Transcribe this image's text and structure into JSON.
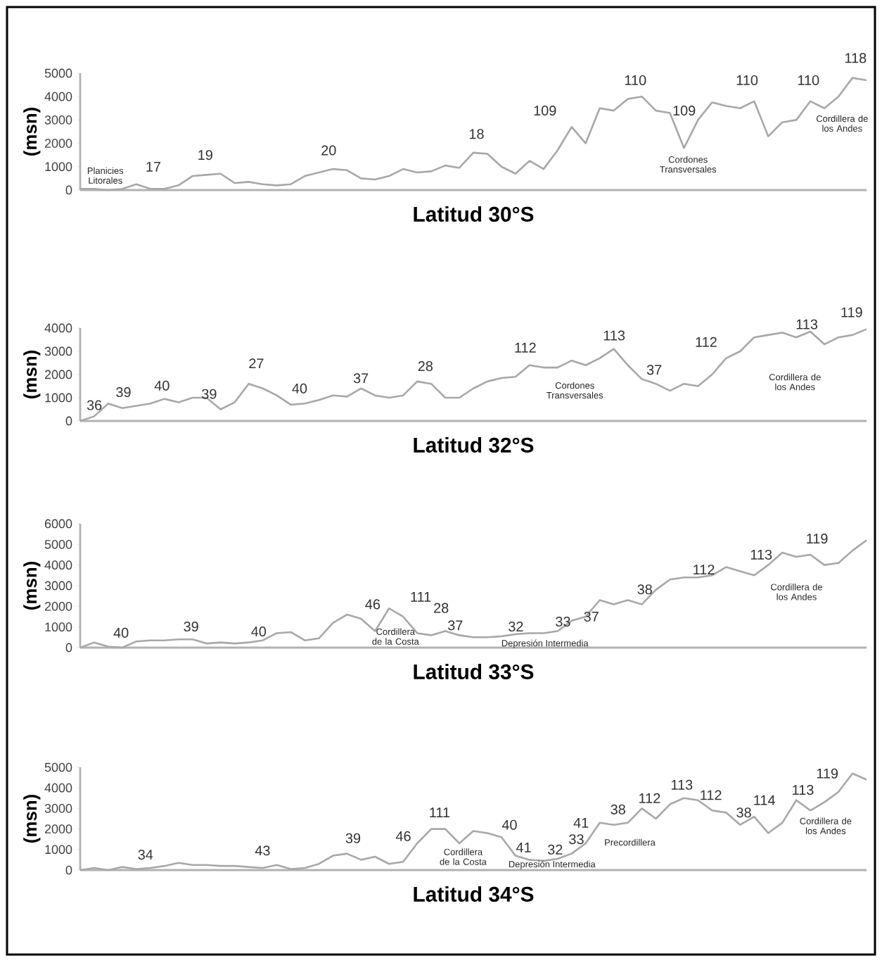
{
  "chart_data": [
    {
      "type": "line",
      "color": "#a8a8a8",
      "tick_labels": "y",
      "xlabel": "Latitud 30°S",
      "ylabel": "(msn)",
      "ylim": [
        0,
        5000
      ],
      "yticks": [
        0,
        1000,
        2000,
        3000,
        4000,
        5000
      ],
      "categories": [
        null,
        null,
        null,
        null,
        null,
        null,
        null,
        null,
        null,
        null,
        null,
        null,
        null,
        null,
        null,
        null,
        null,
        null,
        null,
        null,
        null,
        null,
        null,
        null,
        null,
        null,
        null,
        null,
        null,
        null,
        null,
        null,
        null,
        null,
        null,
        null,
        null,
        null,
        null,
        null,
        null,
        null,
        null,
        null,
        null,
        null,
        null,
        null,
        null,
        null,
        null,
        null,
        null,
        null,
        null,
        null,
        null
      ],
      "values": [
        50,
        50,
        0,
        50,
        250,
        50,
        50,
        200,
        600,
        650,
        700,
        300,
        350,
        250,
        200,
        250,
        600,
        750,
        900,
        850,
        500,
        450,
        600,
        900,
        750,
        800,
        1050,
        950,
        1600,
        1550,
        1000,
        700,
        1250,
        900,
        1700,
        2700,
        2000,
        3500,
        3400,
        3900,
        4000,
        3400,
        3300,
        1800,
        3000,
        3750,
        3600,
        3500,
        3800,
        2300,
        2900,
        3000,
        3800,
        3500,
        4000,
        4800,
        4700
      ],
      "annotations": [
        "Planicies Litorales",
        "17",
        "19",
        "20",
        "18",
        "109",
        "110",
        "109",
        "Cordones Transversales",
        "110",
        "110",
        "118",
        "Cordillera de los Andes"
      ]
    },
    {
      "type": "line",
      "color": "#a8a8a8",
      "tick_labels": "y",
      "xlabel": "Latitud 32°S",
      "ylabel": "(msn)",
      "ylim": [
        0,
        4000
      ],
      "yticks": [
        0,
        1000,
        2000,
        3000,
        4000
      ],
      "categories": [
        null,
        null,
        null,
        null,
        null,
        null,
        null,
        null,
        null,
        null,
        null,
        null,
        null,
        null,
        null,
        null,
        null,
        null,
        null,
        null,
        null,
        null,
        null,
        null,
        null,
        null,
        null,
        null,
        null,
        null,
        null,
        null,
        null,
        null,
        null,
        null,
        null,
        null,
        null,
        null,
        null,
        null,
        null,
        null,
        null,
        null,
        null,
        null,
        null,
        null,
        null,
        null,
        null,
        null,
        null,
        null,
        null
      ],
      "values": [
        0,
        200,
        750,
        550,
        650,
        750,
        950,
        800,
        1000,
        1000,
        500,
        800,
        1600,
        1400,
        1100,
        700,
        750,
        900,
        1100,
        1050,
        1400,
        1100,
        1000,
        1100,
        1700,
        1600,
        1000,
        1000,
        1400,
        1700,
        1850,
        1900,
        2400,
        2300,
        2300,
        2600,
        2400,
        2700,
        3100,
        2400,
        1800,
        1600,
        1300,
        1600,
        1500,
        2000,
        2700,
        3000,
        3600,
        3700,
        3800,
        3600,
        3850,
        3300,
        3600,
        3700,
        3950
      ],
      "annotations": [
        "36",
        "39",
        "40",
        "39",
        "27",
        "40",
        "37",
        "28",
        "112",
        "Cordones Transversales",
        "113",
        "37",
        "112",
        "Cordillera de los Andes",
        "113",
        "119"
      ]
    },
    {
      "type": "line",
      "color": "#a8a8a8",
      "tick_labels": "y",
      "xlabel": "Latitud 33°S",
      "ylabel": "(msn)",
      "ylim": [
        0,
        6000
      ],
      "yticks": [
        0,
        1000,
        2000,
        3000,
        4000,
        5000,
        6000
      ],
      "categories": [
        null,
        null,
        null,
        null,
        null,
        null,
        null,
        null,
        null,
        null,
        null,
        null,
        null,
        null,
        null,
        null,
        null,
        null,
        null,
        null,
        null,
        null,
        null,
        null,
        null,
        null,
        null,
        null,
        null,
        null,
        null,
        null,
        null,
        null,
        null,
        null,
        null,
        null,
        null,
        null,
        null,
        null,
        null,
        null,
        null,
        null,
        null,
        null,
        null,
        null,
        null,
        null,
        null,
        null,
        null,
        null,
        null
      ],
      "values": [
        0,
        250,
        50,
        0,
        300,
        350,
        350,
        400,
        400,
        200,
        250,
        200,
        250,
        350,
        700,
        750,
        350,
        450,
        1200,
        1600,
        1400,
        800,
        1900,
        1500,
        700,
        600,
        800,
        600,
        500,
        500,
        550,
        650,
        700,
        700,
        800,
        1300,
        1500,
        2300,
        2100,
        2300,
        2100,
        2800,
        3300,
        3400,
        3400,
        3500,
        3900,
        3700,
        3500,
        4000,
        4600,
        4400,
        4500,
        4000,
        4100,
        4700,
        5200
      ],
      "annotations": [
        "40",
        "39",
        "40",
        "46",
        "Cordillera de la Costa",
        "111",
        "28",
        "37",
        "32",
        "Depresión Intermedia",
        "33",
        "37",
        "38",
        "112",
        "113",
        "Cordillera de los Andes",
        "119"
      ]
    },
    {
      "type": "line",
      "color": "#a8a8a8",
      "tick_labels": "y",
      "xlabel": "Latitud 34°S",
      "ylabel": "(msn)",
      "ylim": [
        0,
        5000
      ],
      "yticks": [
        0,
        1000,
        2000,
        3000,
        4000,
        5000
      ],
      "categories": [
        null,
        null,
        null,
        null,
        null,
        null,
        null,
        null,
        null,
        null,
        null,
        null,
        null,
        null,
        null,
        null,
        null,
        null,
        null,
        null,
        null,
        null,
        null,
        null,
        null,
        null,
        null,
        null,
        null,
        null,
        null,
        null,
        null,
        null,
        null,
        null,
        null,
        null,
        null,
        null,
        null,
        null,
        null,
        null,
        null,
        null,
        null,
        null,
        null,
        null,
        null,
        null,
        null,
        null,
        null,
        null,
        null
      ],
      "values": [
        0,
        100,
        0,
        150,
        50,
        100,
        200,
        350,
        250,
        250,
        200,
        200,
        150,
        100,
        250,
        50,
        100,
        300,
        700,
        800,
        500,
        650,
        300,
        400,
        1300,
        2000,
        2000,
        1300,
        1900,
        1800,
        1600,
        700,
        500,
        450,
        550,
        800,
        1300,
        2300,
        2200,
        2300,
        3000,
        2500,
        3200,
        3500,
        3400,
        2900,
        2800,
        2200,
        2600,
        1800,
        2300,
        3400,
        2900,
        3300,
        3800,
        4700,
        4400
      ],
      "annotations": [
        "34",
        "43",
        "39",
        "46",
        "111",
        "Cordillera de la Costa",
        "40",
        "41",
        "Depresión Intermedia",
        "32",
        "33",
        "41",
        "38",
        "Precordillera",
        "112",
        "113",
        "112",
        "38",
        "114",
        "113",
        "Cordillera de los Andes",
        "119"
      ]
    }
  ]
}
